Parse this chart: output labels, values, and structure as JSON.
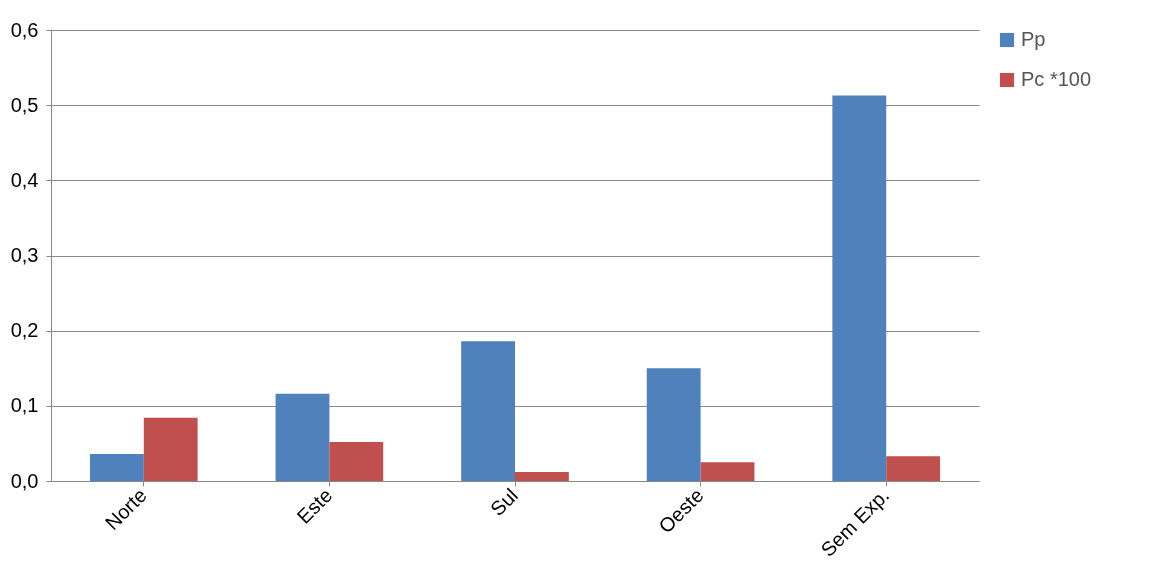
{
  "chart_data": {
    "type": "bar",
    "categories": [
      "Norte",
      "Este",
      "Sul",
      "Oeste",
      "Sem Exp."
    ],
    "series": [
      {
        "name": "Pp",
        "color": "#4f81bd",
        "values": [
          0.036,
          0.116,
          0.186,
          0.15,
          0.513
        ]
      },
      {
        "name": "Pc *100",
        "color": "#c0504d",
        "values": [
          0.084,
          0.052,
          0.012,
          0.025,
          0.033
        ]
      }
    ],
    "ylim": [
      0,
      0.6
    ],
    "yticks": [
      {
        "value": 0,
        "label": "0,0"
      },
      {
        "value": 0.1,
        "label": "0,1"
      },
      {
        "value": 0.2,
        "label": "0,2"
      },
      {
        "value": 0.3,
        "label": "0,3"
      },
      {
        "value": 0.4,
        "label": "0,4"
      },
      {
        "value": 0.5,
        "label": "0,5"
      },
      {
        "value": 0.6,
        "label": "0,6"
      }
    ],
    "grid": "y",
    "legend": "right"
  }
}
